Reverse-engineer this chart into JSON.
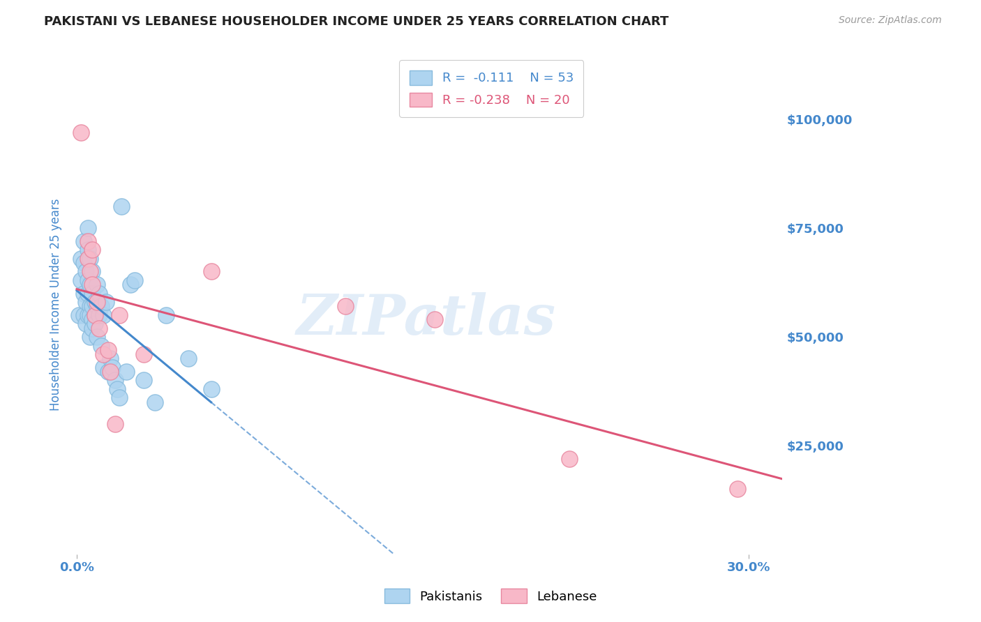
{
  "title": "PAKISTANI VS LEBANESE HOUSEHOLDER INCOME UNDER 25 YEARS CORRELATION CHART",
  "source": "Source: ZipAtlas.com",
  "ylabel": "Householder Income Under 25 years",
  "ytick_labels": [
    "$25,000",
    "$50,000",
    "$75,000",
    "$100,000"
  ],
  "ytick_values": [
    25000,
    50000,
    75000,
    100000
  ],
  "ymin": 0,
  "ymax": 115000,
  "xmin": -0.003,
  "xmax": 0.315,
  "pakistani_x": [
    0.001,
    0.002,
    0.002,
    0.003,
    0.003,
    0.003,
    0.003,
    0.004,
    0.004,
    0.004,
    0.005,
    0.005,
    0.005,
    0.005,
    0.005,
    0.006,
    0.006,
    0.006,
    0.006,
    0.006,
    0.007,
    0.007,
    0.007,
    0.007,
    0.007,
    0.008,
    0.008,
    0.008,
    0.009,
    0.009,
    0.009,
    0.01,
    0.01,
    0.011,
    0.011,
    0.012,
    0.012,
    0.013,
    0.014,
    0.015,
    0.016,
    0.017,
    0.018,
    0.019,
    0.02,
    0.022,
    0.024,
    0.026,
    0.03,
    0.035,
    0.04,
    0.05,
    0.06
  ],
  "pakistani_y": [
    55000,
    68000,
    63000,
    67000,
    72000,
    60000,
    55000,
    65000,
    58000,
    53000,
    75000,
    70000,
    63000,
    60000,
    55000,
    68000,
    62000,
    57000,
    55000,
    50000,
    65000,
    60000,
    57000,
    54000,
    52000,
    58000,
    55000,
    53000,
    62000,
    57000,
    50000,
    60000,
    55000,
    57000,
    48000,
    55000,
    43000,
    58000,
    42000,
    45000,
    43000,
    40000,
    38000,
    36000,
    80000,
    42000,
    62000,
    63000,
    40000,
    35000,
    55000,
    45000,
    38000
  ],
  "lebanese_x": [
    0.002,
    0.005,
    0.005,
    0.006,
    0.007,
    0.007,
    0.008,
    0.009,
    0.01,
    0.012,
    0.014,
    0.015,
    0.017,
    0.019,
    0.03,
    0.06,
    0.12,
    0.16,
    0.22,
    0.295
  ],
  "lebanese_y": [
    97000,
    72000,
    68000,
    65000,
    70000,
    62000,
    55000,
    58000,
    52000,
    46000,
    47000,
    42000,
    30000,
    55000,
    46000,
    65000,
    57000,
    54000,
    22000,
    15000
  ],
  "pakistani_color": "#aed4f0",
  "lebanese_color": "#f8b8c8",
  "pakistani_edge_color": "#88bbdd",
  "lebanese_edge_color": "#e888a0",
  "pakistani_line_color": "#4488cc",
  "lebanese_line_color": "#dd5577",
  "legend_r_pakistani": "-0.111",
  "legend_n_pakistani": "53",
  "legend_r_lebanese": "-0.238",
  "legend_n_lebanese": "20",
  "watermark": "ZIPatlas",
  "title_color": "#222222",
  "axis_label_color": "#4488cc",
  "tick_color": "#4488cc",
  "grid_color": "#cccccc",
  "background_color": "#ffffff"
}
